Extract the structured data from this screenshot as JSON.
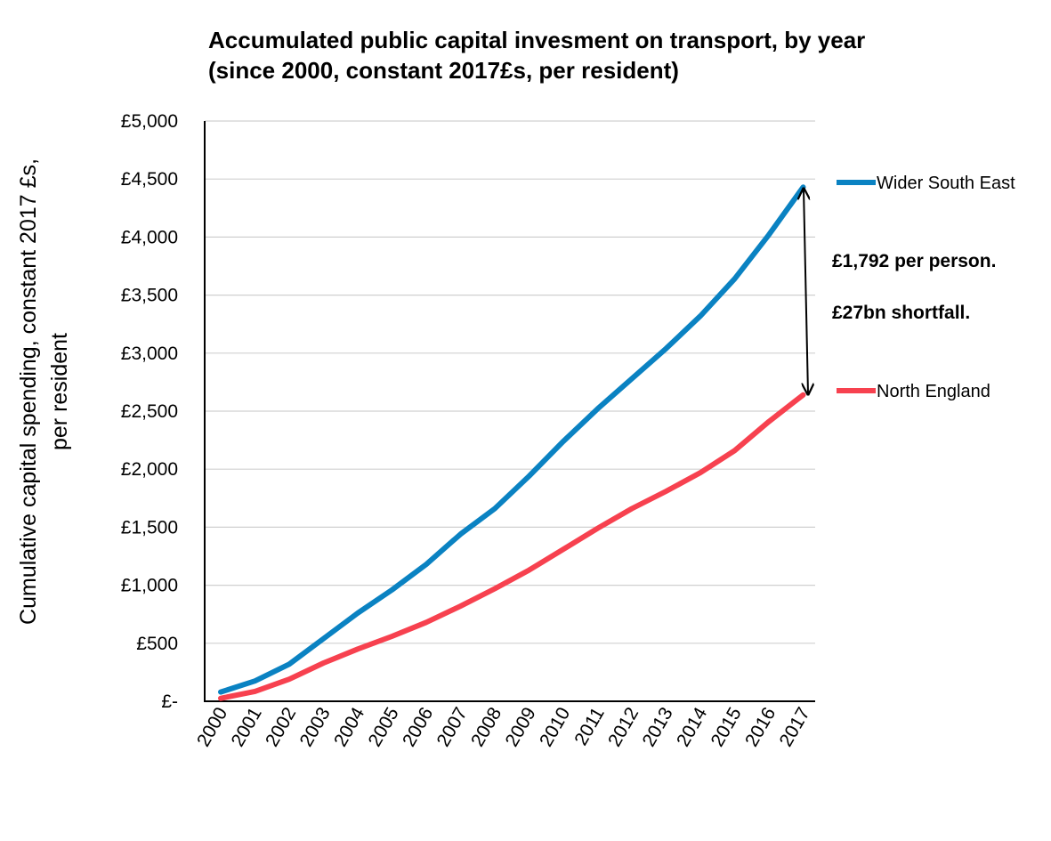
{
  "chart_data": {
    "type": "line",
    "title": [
      "Accumulated public capital invesment on transport, by year",
      "(since 2000, constant 2017£s, per resident)"
    ],
    "ylabel": [
      "Cumulative capital spending, constant 2017 £s,",
      "per resident"
    ],
    "xlabel": "",
    "x": [
      "2000",
      "2001",
      "2002",
      "2003",
      "2004",
      "2005",
      "2006",
      "2007",
      "2008",
      "2009",
      "2010",
      "2011",
      "2012",
      "2013",
      "2014",
      "2015",
      "2016",
      "2017"
    ],
    "ylim": [
      0,
      5000
    ],
    "yticks": [
      0,
      500,
      1000,
      1500,
      2000,
      2500,
      3000,
      3500,
      4000,
      4500,
      5000
    ],
    "ytick_labels": [
      "£-",
      "£500",
      "£1,000",
      "£1,500",
      "£2,000",
      "£2,500",
      "£3,000",
      "£3,500",
      "£4,000",
      "£4,500",
      "£5,000"
    ],
    "grid": "horizontal",
    "legend_placement": "right",
    "series": [
      {
        "name": "Wider South East",
        "color": "#0a82c2",
        "values": [
          80,
          175,
          320,
          540,
          760,
          960,
          1180,
          1440,
          1660,
          1940,
          2240,
          2520,
          2780,
          3040,
          3320,
          3640,
          4020,
          4430
        ]
      },
      {
        "name": "North England",
        "color": "#f7414f",
        "values": [
          25,
          85,
          190,
          330,
          450,
          560,
          680,
          820,
          970,
          1130,
          1310,
          1490,
          1660,
          1810,
          1970,
          2160,
          2410,
          2640
        ]
      }
    ],
    "annotations": [
      "£1,792 per person.",
      "£27bn shortfall."
    ]
  }
}
